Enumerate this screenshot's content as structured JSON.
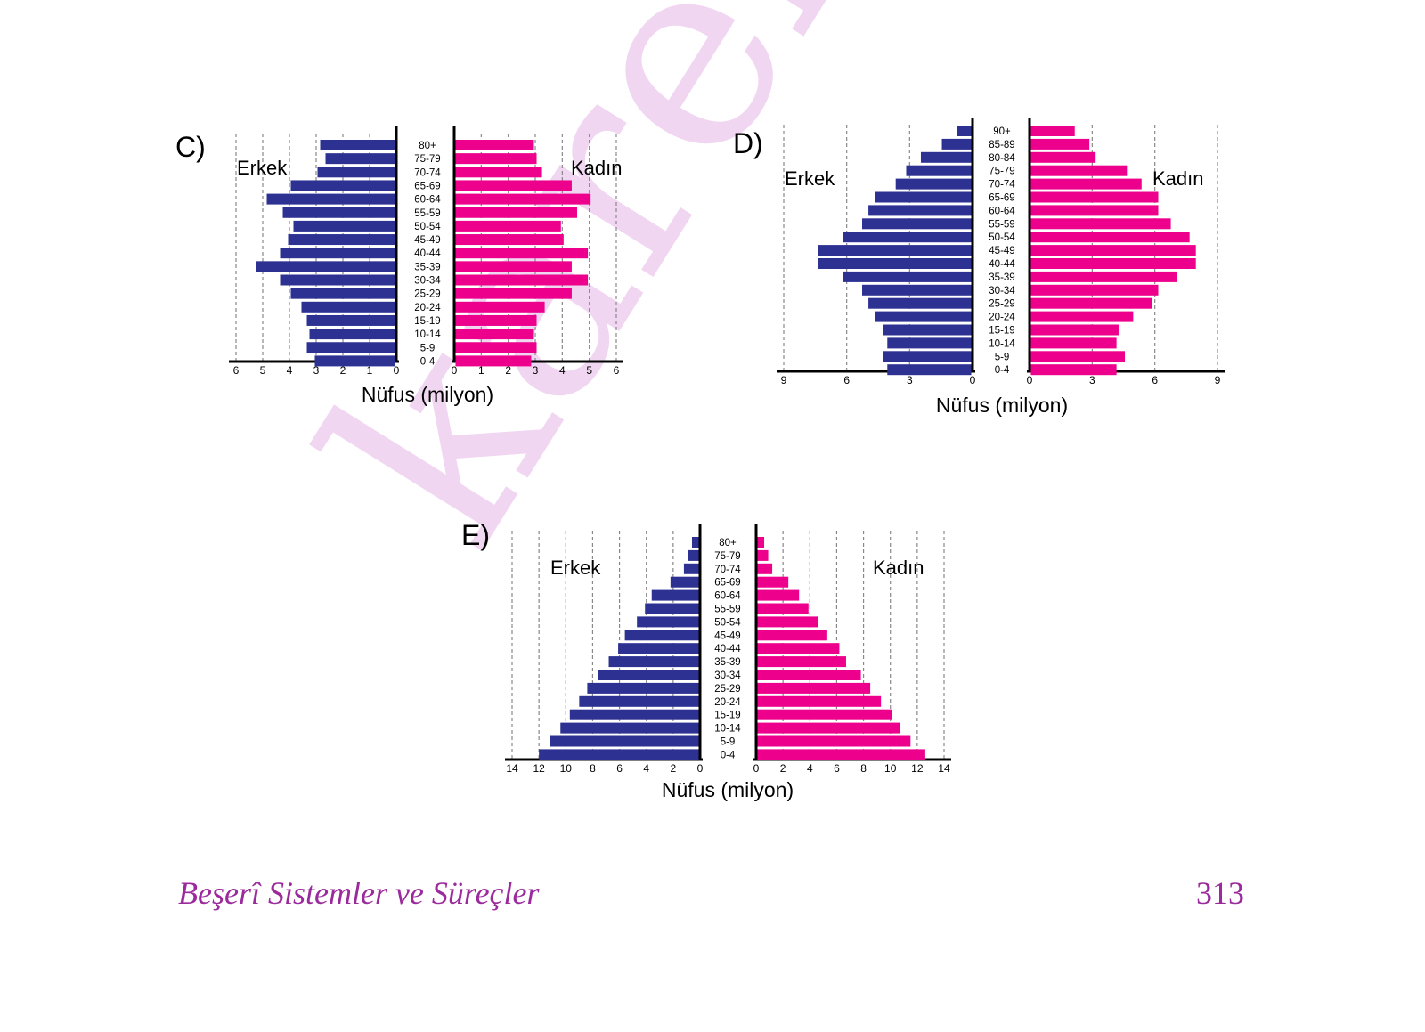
{
  "watermark": "karekök",
  "footer": {
    "title": "Beşerî Sistemler ve Süreçler",
    "page": "313"
  },
  "colors": {
    "male": "#2d3192",
    "female": "#ec008c",
    "grid": "#888888",
    "axis": "#000000",
    "watermark": "#f1d6f2",
    "footer": "#9b2a9d"
  },
  "chart_data": [
    {
      "type": "bar",
      "panel_label": "C)",
      "male_label": "Erkek",
      "female_label": "Kadın",
      "xlabel": "Nüfus (milyon)",
      "categories": [
        "80+",
        "75-79",
        "70-74",
        "65-69",
        "60-64",
        "55-59",
        "50-54",
        "45-49",
        "40-44",
        "35-39",
        "30-34",
        "25-29",
        "20-24",
        "15-19",
        "10-14",
        "5-9",
        "0-4"
      ],
      "series": [
        {
          "name": "Erkek",
          "values": [
            2.8,
            2.6,
            2.9,
            3.9,
            4.8,
            4.2,
            3.8,
            4.0,
            4.3,
            5.2,
            4.3,
            3.9,
            3.5,
            3.3,
            3.2,
            3.3,
            3.0
          ]
        },
        {
          "name": "Kadın",
          "values": [
            2.9,
            3.0,
            3.2,
            4.3,
            5.0,
            4.5,
            3.9,
            4.0,
            4.9,
            4.3,
            4.9,
            4.3,
            3.3,
            3.0,
            2.9,
            3.0,
            2.8
          ]
        }
      ],
      "xlim": [
        0,
        6
      ],
      "male_ticks": [
        "6",
        "5",
        "4",
        "3",
        "2",
        "1",
        "0"
      ],
      "female_ticks": [
        "0",
        "1",
        "2",
        "3",
        "4",
        "5",
        "6"
      ]
    },
    {
      "type": "bar",
      "panel_label": "D)",
      "male_label": "Erkek",
      "female_label": "Kadın",
      "xlabel": "Nüfus (milyon)",
      "categories": [
        "90+",
        "85-89",
        "80-84",
        "75-79",
        "70-74",
        "65-69",
        "60-64",
        "55-59",
        "50-54",
        "45-49",
        "40-44",
        "35-39",
        "30-34",
        "25-29",
        "20-24",
        "15-19",
        "10-14",
        "5-9",
        "0-4"
      ],
      "series": [
        {
          "name": "Erkek",
          "values": [
            0.7,
            1.4,
            2.4,
            3.1,
            3.6,
            4.6,
            4.9,
            5.2,
            6.1,
            7.3,
            7.3,
            6.1,
            5.2,
            4.9,
            4.6,
            4.2,
            4.0,
            4.2,
            4.0
          ]
        },
        {
          "name": "Kadın",
          "values": [
            2.1,
            2.8,
            3.1,
            4.6,
            5.3,
            6.1,
            6.1,
            6.7,
            7.6,
            7.9,
            7.9,
            7.0,
            6.1,
            5.8,
            4.9,
            4.2,
            4.1,
            4.5,
            4.1
          ]
        }
      ],
      "xlim": [
        0,
        9
      ],
      "male_ticks": [
        "9",
        "6",
        "3",
        "0"
      ],
      "female_ticks": [
        "0",
        "3",
        "6",
        "9"
      ]
    },
    {
      "type": "bar",
      "panel_label": "E)",
      "male_label": "Erkek",
      "female_label": "Kadın",
      "xlabel": "Nüfus (milyon)",
      "categories": [
        "80+",
        "75-79",
        "70-74",
        "65-69",
        "60-64",
        "55-59",
        "50-54",
        "45-49",
        "40-44",
        "35-39",
        "30-34",
        "25-29",
        "20-24",
        "15-19",
        "10-14",
        "5-9",
        "0-4"
      ],
      "series": [
        {
          "name": "Erkek",
          "values": [
            0.5,
            0.8,
            1.1,
            2.1,
            3.5,
            4.0,
            4.6,
            5.5,
            6.0,
            6.7,
            7.5,
            8.3,
            8.9,
            9.6,
            10.3,
            11.1,
            11.9
          ]
        },
        {
          "name": "Kadın",
          "values": [
            0.5,
            0.8,
            1.1,
            2.3,
            3.1,
            3.8,
            4.5,
            5.2,
            6.1,
            6.6,
            7.7,
            8.4,
            9.2,
            10.0,
            10.6,
            11.4,
            12.5
          ]
        }
      ],
      "xlim": [
        0,
        14
      ],
      "male_ticks": [
        "14",
        "12",
        "10",
        "8",
        "6",
        "4",
        "2",
        "0"
      ],
      "female_ticks": [
        "0",
        "2",
        "4",
        "6",
        "8",
        "10",
        "12",
        "14"
      ]
    }
  ]
}
